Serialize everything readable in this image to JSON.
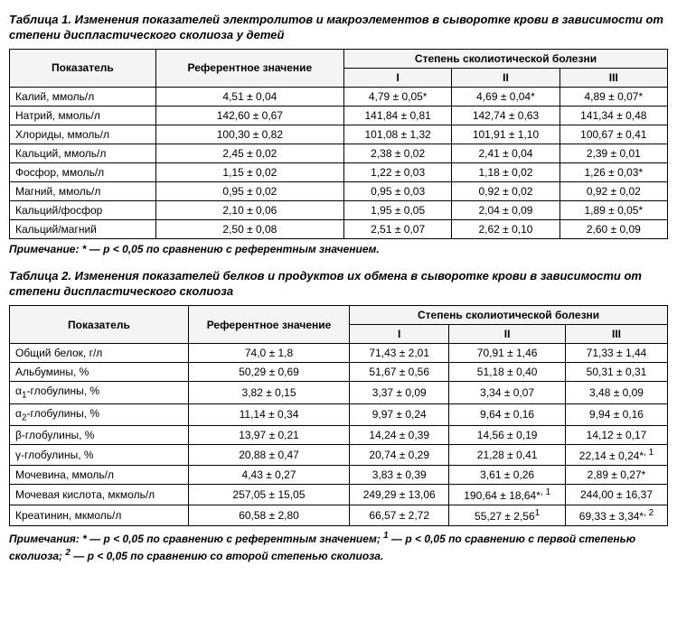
{
  "table1": {
    "title": "Таблица 1. Изменения показателей электролитов и макроэлементов в сыворотке крови в зависимости от степени диспластического сколиоза у детей",
    "headers": {
      "param": "Показатель",
      "ref": "Референтное значение",
      "group": "Степень сколиотической болезни",
      "deg1": "I",
      "deg2": "II",
      "deg3": "III"
    },
    "rows": [
      {
        "p": "Калий, ммоль/л",
        "r": "4,51 ± 0,04",
        "d1": "4,79 ± 0,05*",
        "d2": "4,69 ± 0,04*",
        "d3": "4,89 ± 0,07*"
      },
      {
        "p": "Натрий, ммоль/л",
        "r": "142,60 ± 0,67",
        "d1": "141,84 ± 0,81",
        "d2": "142,74 ± 0,63",
        "d3": "141,34 ± 0,48"
      },
      {
        "p": "Хлориды, ммоль/л",
        "r": "100,30 ± 0,82",
        "d1": "101,08 ± 1,32",
        "d2": "101,91 ± 1,10",
        "d3": "100,67 ± 0,41"
      },
      {
        "p": "Кальций, ммоль/л",
        "r": "2,45 ± 0,02",
        "d1": "2,38 ± 0,02",
        "d2": "2,41 ± 0,04",
        "d3": "2,39 ± 0,01"
      },
      {
        "p": "Фосфор, ммоль/л",
        "r": "1,15 ± 0,02",
        "d1": "1,22 ± 0,03",
        "d2": "1,18 ± 0,02",
        "d3": "1,26 ± 0,03*"
      },
      {
        "p": "Магний, ммоль/л",
        "r": "0,95 ± 0,02",
        "d1": "0,95 ± 0,03",
        "d2": "0,92 ± 0,02",
        "d3": "0,92 ± 0,02"
      },
      {
        "p": "Кальций/фосфор",
        "r": "2,10 ± 0,06",
        "d1": "1,95 ± 0,05",
        "d2": "2,04 ± 0,09",
        "d3": "1,89 ± 0,05*"
      },
      {
        "p": "Кальций/магний",
        "r": "2,50 ± 0,08",
        "d1": "2,51 ± 0,07",
        "d2": "2,62 ± 0,10",
        "d3": "2,60 ± 0,09"
      }
    ],
    "note": "Примечание: * — р < 0,05 по сравнению с референтным значением."
  },
  "table2": {
    "title": "Таблица 2. Изменения показателей белков и продуктов их обмена в сыворотке крови в зависимости от степени диспластического сколиоза",
    "headers": {
      "param": "Показатель",
      "ref": "Референтное значение",
      "group": "Степень сколиотической болезни",
      "deg1": "I",
      "deg2": "II",
      "deg3": "III"
    },
    "rows": [
      {
        "p": "Общий белок, г/л",
        "r": "74,0 ± 1,8",
        "d1": "71,43 ± 2,01",
        "d2": "70,91 ± 1,46",
        "d3": "71,33 ± 1,44"
      },
      {
        "p": "Альбумины, %",
        "r": "50,29 ± 0,69",
        "d1": "51,67 ± 0,56",
        "d2": "51,18 ± 0,40",
        "d3": "50,31 ± 0,31"
      },
      {
        "p": "α<sub>1</sub>-глобулины, %",
        "r": "3,82 ± 0,15",
        "d1": "3,37 ± 0,09",
        "d2": "3,34 ± 0,07",
        "d3": "3,48 ± 0,09"
      },
      {
        "p": "α<sub>2</sub>-глобулины, %",
        "r": "11,14 ± 0,34",
        "d1": "9,97 ± 0,24",
        "d2": "9,64 ± 0,16",
        "d3": "9,94 ± 0,16"
      },
      {
        "p": "β-глобулины, %",
        "r": "13,97 ± 0,21",
        "d1": "14,24 ± 0,39",
        "d2": "14,56 ± 0,19",
        "d3": "14,12 ± 0,17"
      },
      {
        "p": "γ-глобулины, %",
        "r": "20,88 ± 0,47",
        "d1": "20,74 ± 0,29",
        "d2": "21,28 ± 0,41",
        "d3": "22,14 ± 0,24*<sup>, 1</sup>"
      },
      {
        "p": "Мочевина, ммоль/л",
        "r": "4,43 ± 0,27",
        "d1": "3,83 ± 0,39",
        "d2": "3,61 ± 0,26",
        "d3": "2,89 ± 0,27*"
      },
      {
        "p": "Мочевая кислота, мкмоль/л",
        "r": "257,05 ± 15,05",
        "d1": "249,29 ± 13,06",
        "d2": "190,64 ± 18,64*<sup>, 1</sup>",
        "d3": "244,00 ± 16,37"
      },
      {
        "p": "Креатинин, мкмоль/л",
        "r": "60,58 ± 2,80",
        "d1": "66,57 ± 2,72",
        "d2": "55,27 ± 2,56<sup>1</sup>",
        "d3": "69,33 ± 3,34*<sup>, 2</sup>"
      }
    ],
    "note": "Примечания: * — р < 0,05 по сравнению с референтным значением; <sup>1</sup> — р < 0,05 по сравнению с первой степенью сколиоза; <sup>2</sup> — р < 0,05 по сравнению со второй степенью сколиоза."
  }
}
